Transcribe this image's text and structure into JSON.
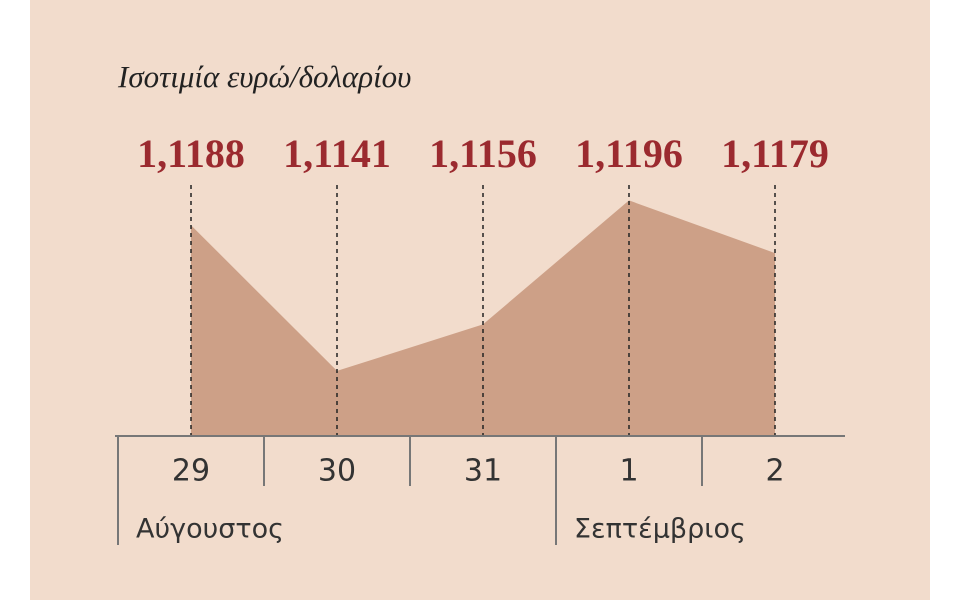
{
  "chart_data": {
    "type": "area",
    "title": "Ισοτιμία ευρώ/δολαρίου",
    "categories": [
      "29",
      "30",
      "31",
      "1",
      "2"
    ],
    "values": [
      1.1188,
      1.1141,
      1.1156,
      1.1196,
      1.1179
    ],
    "value_labels": [
      "1,1188",
      "1,1141",
      "1,1156",
      "1,1196",
      "1,1179"
    ],
    "groups": [
      "Αύγουστος",
      "Σεπτέμβριος"
    ],
    "color": "#cda087",
    "label_color": "#9b2a2f",
    "ylim": [
      1.112,
      1.12
    ]
  }
}
